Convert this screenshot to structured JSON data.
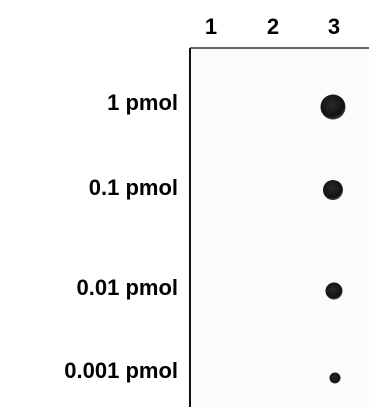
{
  "columns": [
    "1",
    "2",
    "3"
  ],
  "rows": [
    "1 pmol",
    "0.1 pmol",
    "0.01 pmol",
    "0.001 pmol"
  ]
}
